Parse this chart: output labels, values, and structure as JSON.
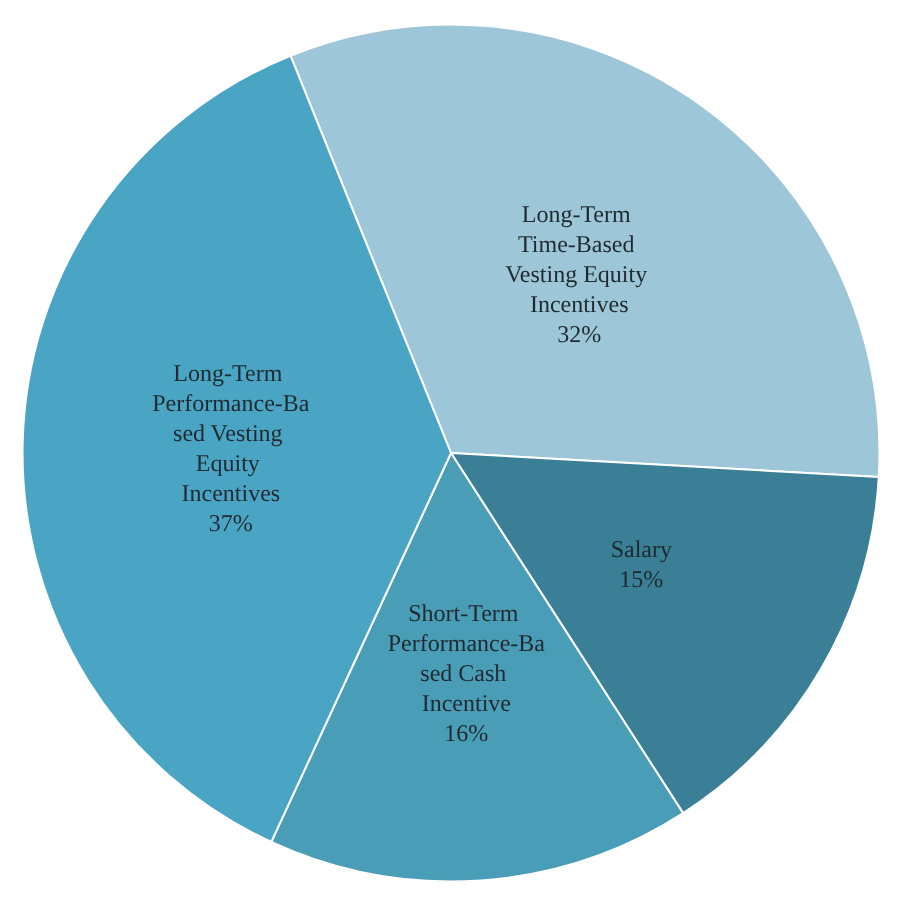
{
  "chart_data": {
    "type": "pie",
    "categories": [
      "Long-Term Time-Based Vesting Equity Incentives",
      "Salary",
      "Short-Term Performance-Based Cash Incentive",
      "Long-Term Performance-Based Vesting Equity Incentives"
    ],
    "values": [
      32,
      15,
      16,
      37
    ],
    "value_labels": [
      "32%",
      "15%",
      "16%",
      "37%"
    ],
    "colors": [
      "#9dc6d8",
      "#3a7f96",
      "#4a9db7",
      "#4aa5c4"
    ],
    "legend": false
  }
}
